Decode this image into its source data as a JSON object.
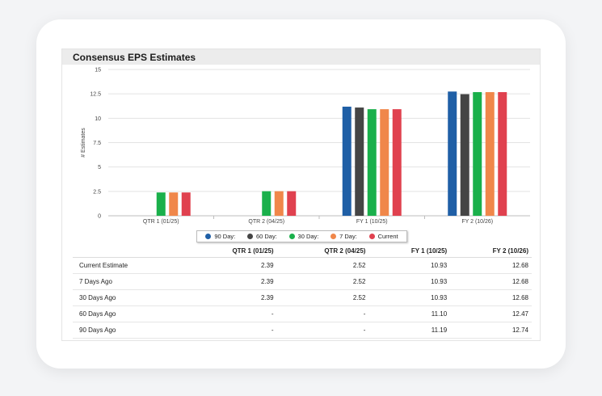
{
  "panel": {
    "title": "Consensus EPS Estimates"
  },
  "colors": {
    "90 Day:": "#1f5fa6",
    "60 Day:": "#454545",
    "30 Day:": "#1ab04b",
    "7 Day:": "#f0874a",
    "Current": "#e0414f"
  },
  "chart_data": {
    "type": "bar",
    "title": "",
    "xlabel": "",
    "ylabel": "# Estimates",
    "ylim": [
      0,
      15
    ],
    "yticks": [
      "0",
      "2.5",
      "5",
      "7.5",
      "10",
      "12.5",
      "15"
    ],
    "categories": [
      "QTR 1 (01/25)",
      "QTR 2 (04/25)",
      "FY 1 (10/25)",
      "FY 2 (10/26)"
    ],
    "series": [
      {
        "name": "90 Day:",
        "values": [
          null,
          null,
          11.19,
          12.74
        ]
      },
      {
        "name": "60 Day:",
        "values": [
          null,
          null,
          11.1,
          12.47
        ]
      },
      {
        "name": "30 Day:",
        "values": [
          2.39,
          2.52,
          10.93,
          12.68
        ]
      },
      {
        "name": "7 Day:",
        "values": [
          2.39,
          2.52,
          10.93,
          12.68
        ]
      },
      {
        "name": "Current",
        "values": [
          2.39,
          2.52,
          10.93,
          12.68
        ]
      }
    ],
    "legend": "bottom-center",
    "grid": true
  },
  "table": {
    "headers": [
      "QTR 1 (01/25)",
      "QTR 2 (04/25)",
      "FY 1 (10/25)",
      "FY 2 (10/26)"
    ],
    "rows": [
      {
        "label": "Current Estimate",
        "values": [
          "2.39",
          "2.52",
          "10.93",
          "12.68"
        ]
      },
      {
        "label": "7 Days Ago",
        "values": [
          "2.39",
          "2.52",
          "10.93",
          "12.68"
        ]
      },
      {
        "label": "30 Days Ago",
        "values": [
          "2.39",
          "2.52",
          "10.93",
          "12.68"
        ]
      },
      {
        "label": "60 Days Ago",
        "values": [
          "-",
          "-",
          "11.10",
          "12.47"
        ]
      },
      {
        "label": "90 Days Ago",
        "values": [
          "-",
          "-",
          "11.19",
          "12.74"
        ]
      }
    ]
  }
}
